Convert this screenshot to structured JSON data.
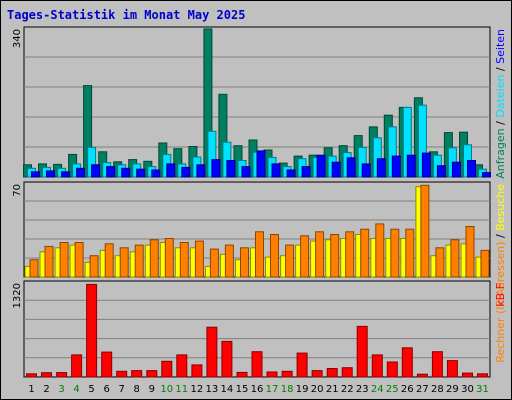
{
  "title": "Tages-Statistik im Monat May 2025",
  "colors": {
    "anfragen": "#008060",
    "dateien": "#00e0ff",
    "seiten": "#0000ff",
    "besuche": "#ffff00",
    "rechner": "#ff8000",
    "kbf": "#ff0000",
    "weekend_day": "#008000",
    "weekday": "#000000",
    "grid": "#808080",
    "panel_bg": "#c0c0c0"
  },
  "chart_data": [
    {
      "type": "bar",
      "panel": "top",
      "ymax_label": "340",
      "ylim": [
        0,
        340
      ],
      "categories": [
        "1",
        "2",
        "3",
        "4",
        "5",
        "6",
        "7",
        "8",
        "9",
        "10",
        "11",
        "12",
        "13",
        "14",
        "15",
        "16",
        "17",
        "18",
        "19",
        "20",
        "21",
        "22",
        "23",
        "24",
        "25",
        "26",
        "27",
        "28",
        "29",
        "30",
        "31"
      ],
      "legend": [
        {
          "text": "Anfragen",
          "color_key": "anfragen"
        },
        {
          "text": " / ",
          "color_key": "weekday"
        },
        {
          "text": "Dateien",
          "color_key": "dateien"
        },
        {
          "text": " / ",
          "color_key": "weekday"
        },
        {
          "text": "Seiten",
          "color_key": "seiten"
        }
      ],
      "series": [
        {
          "color_key": "anfragen",
          "values": [
            28,
            30,
            29,
            52,
            210,
            58,
            35,
            40,
            36,
            78,
            65,
            70,
            340,
            190,
            72,
            85,
            62,
            32,
            48,
            50,
            67,
            72,
            95,
            115,
            142,
            160,
            182,
            58,
            102,
            103,
            28
          ]
        },
        {
          "color_key": "dateien",
          "values": [
            20,
            22,
            20,
            30,
            68,
            33,
            28,
            30,
            24,
            52,
            30,
            46,
            105,
            80,
            38,
            57,
            45,
            24,
            42,
            45,
            48,
            56,
            68,
            90,
            115,
            160,
            165,
            50,
            67,
            74,
            18
          ]
        },
        {
          "color_key": "seiten",
          "values": [
            12,
            14,
            12,
            20,
            28,
            24,
            20,
            18,
            16,
            30,
            22,
            28,
            40,
            38,
            24,
            60,
            30,
            16,
            24,
            50,
            34,
            44,
            30,
            42,
            48,
            50,
            55,
            26,
            34,
            38,
            10
          ]
        }
      ]
    },
    {
      "type": "bar",
      "panel": "middle",
      "ymax_label": "70",
      "ylim": [
        0,
        70
      ],
      "categories": [
        "1",
        "2",
        "3",
        "4",
        "5",
        "6",
        "7",
        "8",
        "9",
        "10",
        "11",
        "12",
        "13",
        "14",
        "15",
        "16",
        "17",
        "18",
        "19",
        "20",
        "21",
        "22",
        "23",
        "24",
        "25",
        "26",
        "27",
        "28",
        "29",
        "30",
        "31"
      ],
      "legend": [
        {
          "text": "Rechner (IP-Adressen)",
          "color_key": "rechner"
        },
        {
          "text": " / ",
          "color_key": "weekday"
        },
        {
          "text": "Besuche",
          "color_key": "besuche"
        }
      ],
      "series": [
        {
          "color_key": "besuche",
          "values": [
            8,
            19,
            22,
            24,
            11,
            20,
            16,
            19,
            24,
            26,
            22,
            22,
            8,
            17,
            13,
            22,
            15,
            16,
            24,
            27,
            28,
            29,
            32,
            29,
            29,
            29,
            68,
            16,
            24,
            25,
            15
          ]
        },
        {
          "color_key": "rechner",
          "values": [
            13,
            23,
            26,
            26,
            16,
            25,
            22,
            24,
            28,
            29,
            26,
            27,
            21,
            24,
            22,
            34,
            32,
            24,
            31,
            34,
            32,
            34,
            36,
            40,
            36,
            36,
            69,
            22,
            28,
            38,
            20
          ]
        }
      ]
    },
    {
      "type": "bar",
      "panel": "bottom",
      "ymax_label": "1320",
      "ylim": [
        0,
        1320
      ],
      "categories": [
        "1",
        "2",
        "3",
        "4",
        "5",
        "6",
        "7",
        "8",
        "9",
        "10",
        "11",
        "12",
        "13",
        "14",
        "15",
        "16",
        "17",
        "18",
        "19",
        "20",
        "21",
        "22",
        "23",
        "24",
        "25",
        "26",
        "27",
        "28",
        "29",
        "30",
        "31"
      ],
      "legend": [
        {
          "text": "kB F",
          "color_key": "kbf"
        }
      ],
      "series": [
        {
          "color_key": "kbf",
          "values": [
            45,
            60,
            62,
            310,
            1300,
            350,
            80,
            90,
            90,
            220,
            310,
            170,
            700,
            500,
            65,
            355,
            70,
            80,
            335,
            90,
            120,
            130,
            710,
            310,
            210,
            410,
            40,
            355,
            230,
            55,
            45
          ]
        }
      ]
    }
  ],
  "day_labels": [
    {
      "text": "1",
      "weekend": false
    },
    {
      "text": "2",
      "weekend": false
    },
    {
      "text": "3",
      "weekend": true
    },
    {
      "text": "4",
      "weekend": true
    },
    {
      "text": "5",
      "weekend": false
    },
    {
      "text": "6",
      "weekend": false
    },
    {
      "text": "7",
      "weekend": false
    },
    {
      "text": "8",
      "weekend": false
    },
    {
      "text": "9",
      "weekend": false
    },
    {
      "text": "10",
      "weekend": true
    },
    {
      "text": "11",
      "weekend": true
    },
    {
      "text": "12",
      "weekend": false
    },
    {
      "text": "13",
      "weekend": false
    },
    {
      "text": "14",
      "weekend": false
    },
    {
      "text": "15",
      "weekend": false
    },
    {
      "text": "16",
      "weekend": false
    },
    {
      "text": "17",
      "weekend": true
    },
    {
      "text": "18",
      "weekend": true
    },
    {
      "text": "19",
      "weekend": false
    },
    {
      "text": "20",
      "weekend": false
    },
    {
      "text": "21",
      "weekend": false
    },
    {
      "text": "22",
      "weekend": false
    },
    {
      "text": "23",
      "weekend": false
    },
    {
      "text": "24",
      "weekend": true
    },
    {
      "text": "25",
      "weekend": true
    },
    {
      "text": "26",
      "weekend": false
    },
    {
      "text": "27",
      "weekend": false
    },
    {
      "text": "28",
      "weekend": false
    },
    {
      "text": "29",
      "weekend": false
    },
    {
      "text": "30",
      "weekend": false
    },
    {
      "text": "31",
      "weekend": true
    }
  ]
}
